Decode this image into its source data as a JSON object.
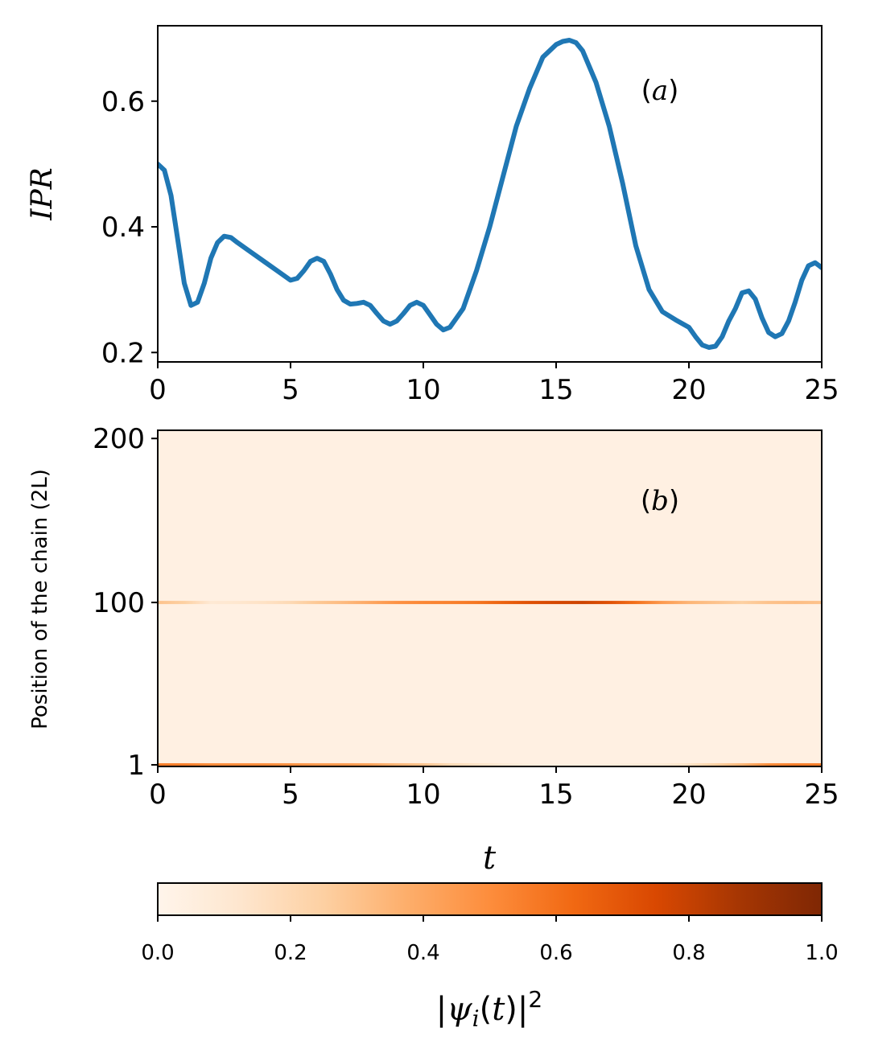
{
  "chart_data": [
    {
      "type": "line",
      "panel_label": "(a)",
      "ylabel": "IPR",
      "xlim": [
        0,
        25
      ],
      "ylim": [
        0.185,
        0.72
      ],
      "x_ticks": [
        "0",
        "5",
        "10",
        "15",
        "20",
        "25"
      ],
      "y_ticks": [
        "0.2",
        "0.4",
        "0.6"
      ],
      "color": "#1f77b4",
      "series": [
        {
          "x": [
            0,
            0.25,
            0.5,
            0.75,
            1.0,
            1.25,
            1.5,
            1.75,
            2.0,
            2.25,
            2.5,
            2.75,
            3.0,
            3.5,
            4.0,
            4.5,
            5.0,
            5.25,
            5.5,
            5.75,
            6.0,
            6.25,
            6.5,
            6.75,
            7.0,
            7.25,
            7.5,
            7.75,
            8.0,
            8.25,
            8.5,
            8.75,
            9.0,
            9.25,
            9.5,
            9.75,
            10.0,
            10.25,
            10.5,
            10.75,
            11.0,
            11.25,
            11.5,
            11.75,
            12.0,
            12.5,
            13.0,
            13.5,
            14.0,
            14.5,
            15.0,
            15.25,
            15.5,
            15.75,
            16.0,
            16.5,
            17.0,
            17.5,
            18.0,
            18.5,
            19.0,
            19.5,
            20.0,
            20.25,
            20.5,
            20.75,
            21.0,
            21.25,
            21.5,
            21.75,
            22.0,
            22.25,
            22.5,
            22.75,
            23.0,
            23.25,
            23.5,
            23.75,
            24.0,
            24.25,
            24.5,
            24.75,
            25.0
          ],
          "y": [
            0.5,
            0.49,
            0.45,
            0.38,
            0.31,
            0.275,
            0.28,
            0.31,
            0.35,
            0.375,
            0.385,
            0.383,
            0.375,
            0.36,
            0.345,
            0.33,
            0.315,
            0.318,
            0.33,
            0.345,
            0.35,
            0.345,
            0.325,
            0.3,
            0.283,
            0.277,
            0.278,
            0.28,
            0.275,
            0.262,
            0.25,
            0.245,
            0.25,
            0.262,
            0.275,
            0.28,
            0.275,
            0.26,
            0.245,
            0.236,
            0.24,
            0.255,
            0.27,
            0.3,
            0.33,
            0.4,
            0.48,
            0.56,
            0.62,
            0.67,
            0.69,
            0.695,
            0.697,
            0.693,
            0.68,
            0.63,
            0.56,
            0.47,
            0.37,
            0.3,
            0.265,
            0.252,
            0.24,
            0.225,
            0.212,
            0.208,
            0.21,
            0.225,
            0.25,
            0.27,
            0.295,
            0.298,
            0.285,
            0.255,
            0.232,
            0.225,
            0.23,
            0.25,
            0.28,
            0.315,
            0.338,
            0.343,
            0.335
          ]
        }
      ]
    },
    {
      "type": "heatmap",
      "panel_label": "(b)",
      "xlabel": "t",
      "ylabel": "Position of the chain (2L)",
      "xlim": [
        0,
        25
      ],
      "ylim": [
        0,
        205
      ],
      "x_ticks": [
        "0",
        "5",
        "10",
        "15",
        "20",
        "25"
      ],
      "y_ticks": [
        "1",
        "100",
        "200"
      ],
      "y_tick_values": [
        1,
        100,
        200
      ],
      "background_intensity": 0.04,
      "bands": [
        {
          "position": 100,
          "t": [
            0,
            1,
            2,
            3,
            4,
            5,
            6,
            7,
            8,
            9,
            10,
            11,
            12,
            13,
            14,
            15,
            16,
            17,
            18,
            19,
            20,
            21,
            22,
            23,
            24,
            25
          ],
          "intensity": [
            0.3,
            0.25,
            0.1,
            0.12,
            0.15,
            0.2,
            0.28,
            0.33,
            0.4,
            0.48,
            0.52,
            0.54,
            0.58,
            0.65,
            0.72,
            0.76,
            0.78,
            0.72,
            0.6,
            0.45,
            0.35,
            0.3,
            0.25,
            0.3,
            0.32,
            0.3
          ]
        },
        {
          "position": 1,
          "t": [
            0,
            1,
            2,
            3,
            4,
            5,
            6,
            7,
            8,
            9,
            10,
            11,
            12,
            13,
            14,
            15,
            16,
            17,
            18,
            19,
            20,
            21,
            22,
            23,
            24,
            25
          ],
          "intensity": [
            0.55,
            0.55,
            0.5,
            0.5,
            0.5,
            0.48,
            0.45,
            0.45,
            0.42,
            0.35,
            0.3,
            0.2,
            0.15,
            0.1,
            0.06,
            0.05,
            0.05,
            0.06,
            0.08,
            0.1,
            0.15,
            0.25,
            0.35,
            0.5,
            0.55,
            0.55
          ]
        }
      ]
    },
    {
      "type": "colorbar",
      "label": "|ψ_i(t)|^2",
      "range": [
        0,
        1
      ],
      "ticks": [
        "0.0",
        "0.2",
        "0.4",
        "0.6",
        "0.8",
        "1.0"
      ],
      "colormap": "Oranges",
      "stops": [
        "#fff5eb",
        "#fee6ce",
        "#fdd0a2",
        "#fdae6b",
        "#fd8d3c",
        "#f16913",
        "#d94801",
        "#a63603",
        "#7f2704"
      ]
    }
  ]
}
